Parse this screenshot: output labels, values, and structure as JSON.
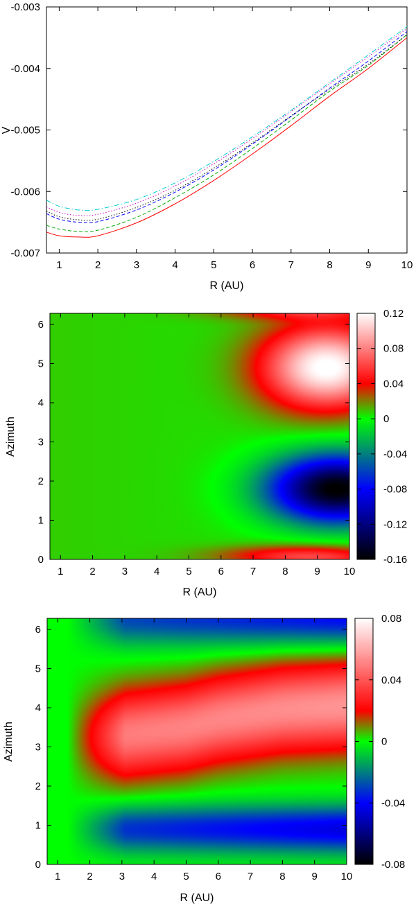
{
  "chart_data": [
    {
      "type": "line",
      "xlabel": "R (AU)",
      "ylabel": "V",
      "xlim": [
        0.67,
        10
      ],
      "ylim": [
        -0.007,
        -0.003
      ],
      "xticks": [
        "1",
        "2",
        "3",
        "4",
        "5",
        "6",
        "7",
        "8",
        "9",
        "10"
      ],
      "yticks": [
        "-0.003",
        "-0.004",
        "-0.005",
        "-0.006",
        "-0.007"
      ],
      "grid": false,
      "legend": "none",
      "series": [
        {
          "color": "#ff0000",
          "dash": "solid",
          "x": [
            0.67,
            1.0,
            1.5,
            2.0,
            3.0,
            4.0,
            5.0,
            6.0,
            7.0,
            8.0,
            9.0,
            10.0
          ],
          "y": [
            -0.00666,
            -0.00672,
            -0.00674,
            -0.00672,
            -0.00651,
            -0.0062,
            -0.00582,
            -0.00539,
            -0.00493,
            -0.00445,
            -0.004,
            -0.0035
          ]
        },
        {
          "color": "#00aa00",
          "dash": "dashed",
          "x": [
            0.67,
            1.0,
            1.5,
            2.0,
            3.0,
            4.0,
            5.0,
            6.0,
            7.0,
            8.0,
            9.0,
            10.0
          ],
          "y": [
            -0.00655,
            -0.00661,
            -0.00665,
            -0.00663,
            -0.00642,
            -0.0061,
            -0.00573,
            -0.0053,
            -0.00484,
            -0.00437,
            -0.00395,
            -0.00345
          ]
        },
        {
          "color": "#0000ff",
          "dash": "dashed",
          "x": [
            0.67,
            1.0,
            1.5,
            2.0,
            3.0,
            4.0,
            5.0,
            6.0,
            7.0,
            8.0,
            9.0,
            10.0
          ],
          "y": [
            -0.00636,
            -0.00645,
            -0.0065,
            -0.00649,
            -0.0063,
            -0.00601,
            -0.00565,
            -0.00523,
            -0.00478,
            -0.00432,
            -0.00388,
            -0.0034
          ]
        },
        {
          "color": "#000000",
          "dash": "dotted",
          "x": [
            0.67,
            1.0,
            1.5,
            2.0,
            3.0,
            4.0,
            5.0,
            6.0,
            7.0,
            8.0,
            9.0,
            10.0
          ],
          "y": [
            -0.00632,
            -0.00641,
            -0.00646,
            -0.00645,
            -0.00626,
            -0.00598,
            -0.00562,
            -0.00521,
            -0.00477,
            -0.00434,
            -0.00393,
            -0.00345
          ]
        },
        {
          "color": "#cc00cc",
          "dash": "dotted",
          "x": [
            0.67,
            1.0,
            1.5,
            2.0,
            3.0,
            4.0,
            5.0,
            6.0,
            7.0,
            8.0,
            9.0,
            10.0
          ],
          "y": [
            -0.00625,
            -0.00634,
            -0.00639,
            -0.00637,
            -0.00619,
            -0.00591,
            -0.00555,
            -0.00514,
            -0.0047,
            -0.00425,
            -0.00381,
            -0.00335
          ]
        },
        {
          "color": "#00cccc",
          "dash": "dashdot",
          "x": [
            0.67,
            1.0,
            1.5,
            2.0,
            3.0,
            4.0,
            5.0,
            6.0,
            7.0,
            8.0,
            9.0,
            10.0
          ],
          "y": [
            -0.00614,
            -0.00624,
            -0.0063,
            -0.00629,
            -0.00613,
            -0.00586,
            -0.00551,
            -0.00511,
            -0.00468,
            -0.00423,
            -0.00378,
            -0.00332
          ]
        }
      ]
    },
    {
      "type": "heatmap",
      "xlabel": "R (AU)",
      "ylabel": "Azimuth",
      "xlim": [
        0.67,
        10
      ],
      "ylim": [
        0,
        6.283
      ],
      "xticks": [
        "1",
        "2",
        "3",
        "4",
        "5",
        "6",
        "7",
        "8",
        "9",
        "10"
      ],
      "yticks": [
        "0",
        "1",
        "2",
        "3",
        "4",
        "5",
        "6"
      ],
      "colorbar": {
        "range": [
          -0.16,
          0.12
        ],
        "ticks": [
          {
            "value": 0.12,
            "label": "0.12"
          },
          {
            "value": 0.08,
            "label": "0.08"
          },
          {
            "value": 0.04,
            "label": "0.04"
          },
          {
            "value": 0.0,
            "label": "0"
          },
          {
            "value": -0.04,
            "label": "-0.04"
          },
          {
            "value": -0.08,
            "label": "-0.08"
          },
          {
            "value": -0.12,
            "label": "-0.12"
          },
          {
            "value": -0.16,
            "label": "-0.16"
          }
        ]
      },
      "palette": [
        {
          "v": -0.16,
          "color": "#000000"
        },
        {
          "v": -0.08,
          "color": "#0000ff"
        },
        {
          "v": 0.0,
          "color": "#00ff00"
        },
        {
          "v": 0.04,
          "color": "#ff0000"
        },
        {
          "v": 0.12,
          "color": "#ffffff"
        }
      ],
      "features": {
        "background": 0.008,
        "peaks": [
          {
            "x": 9.3,
            "y": 4.9,
            "amp": 0.12,
            "sx": 2.0,
            "sy": 1.05,
            "edge": 10
          },
          {
            "x": 9.6,
            "y": 1.8,
            "amp": -0.165,
            "sx": 2.1,
            "sy": 0.85,
            "edge": 10
          },
          {
            "x": 8.5,
            "y": 0.1,
            "amp": 0.045,
            "sx": 2.6,
            "sy": 0.25,
            "edge": 10
          }
        ]
      }
    },
    {
      "type": "heatmap",
      "xlabel": "R (AU)",
      "ylabel": "Azimuth",
      "xlim": [
        0.67,
        10
      ],
      "ylim": [
        0,
        6.283
      ],
      "xticks": [
        "1",
        "2",
        "3",
        "4",
        "5",
        "6",
        "7",
        "8",
        "9",
        "10"
      ],
      "yticks": [
        "0",
        "1",
        "2",
        "3",
        "4",
        "5",
        "6"
      ],
      "colorbar": {
        "range": [
          -0.08,
          0.08
        ],
        "ticks": [
          {
            "value": 0.08,
            "label": "0.08"
          },
          {
            "value": 0.04,
            "label": "0.04"
          },
          {
            "value": 0.0,
            "label": "0"
          },
          {
            "value": -0.04,
            "label": "-0.04"
          },
          {
            "value": -0.08,
            "label": "-0.08"
          }
        ]
      },
      "palette": [
        {
          "v": -0.08,
          "color": "#000000"
        },
        {
          "v": -0.04,
          "color": "#0000ff"
        },
        {
          "v": 0.0,
          "color": "#00ff00"
        },
        {
          "v": 0.02,
          "color": "#ff0000"
        },
        {
          "v": 0.08,
          "color": "#ffffff"
        }
      ],
      "features": {
        "background": 0.0,
        "wave": {
          "amp": 0.055,
          "center": [
            3.2,
            3.3,
            3.5,
            3.7,
            3.95,
            4.05
          ],
          "r": [
            0.67,
            3,
            5,
            6,
            8,
            10
          ],
          "width": 1.1
        },
        "lowlobes": [
          {
            "y": 0.9,
            "amp": -0.045,
            "width": 0.6
          },
          {
            "y": 6.3,
            "amp": -0.04,
            "width": 0.7
          }
        ]
      }
    }
  ]
}
